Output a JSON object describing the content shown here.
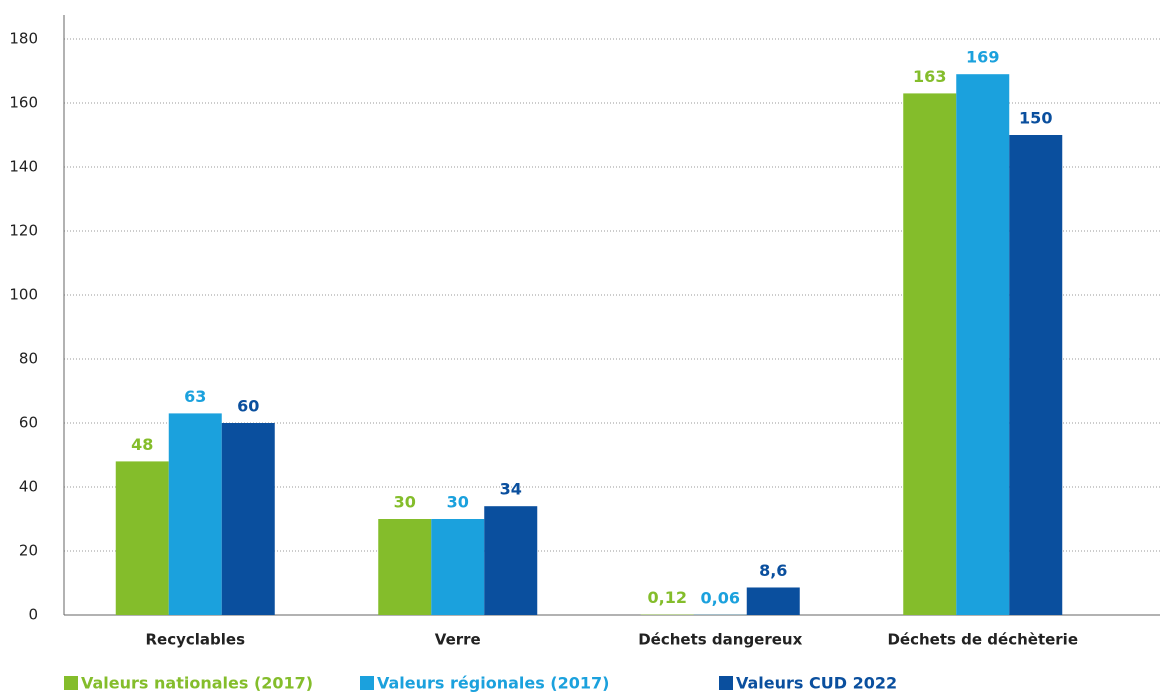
{
  "chart_data": {
    "type": "bar",
    "categories": [
      "Recyclables",
      "Verre",
      "Déchets dangereux",
      "Déchets de déchèterie"
    ],
    "series": [
      {
        "name": "Valeurs nationales (2017)",
        "color": "#84bd2b",
        "values": [
          48,
          30,
          0.12,
          163
        ],
        "value_labels": [
          "48",
          "30",
          "0,12",
          "163"
        ]
      },
      {
        "name": "Valeurs régionales (2017)",
        "color": "#1ba1dd",
        "values": [
          63,
          30,
          0.06,
          169
        ],
        "value_labels": [
          "63",
          "30",
          "0,06",
          "169"
        ]
      },
      {
        "name": "Valeurs CUD 2022",
        "color": "#0a4f9e",
        "values": [
          60,
          34,
          8.6,
          150
        ],
        "value_labels": [
          "60",
          "34",
          "8,6",
          "150"
        ]
      }
    ],
    "ylim": [
      0,
      180
    ],
    "yticks": [
      0,
      20,
      40,
      60,
      80,
      100,
      120,
      140,
      160,
      180
    ],
    "grid": true,
    "legend": "bottom"
  }
}
